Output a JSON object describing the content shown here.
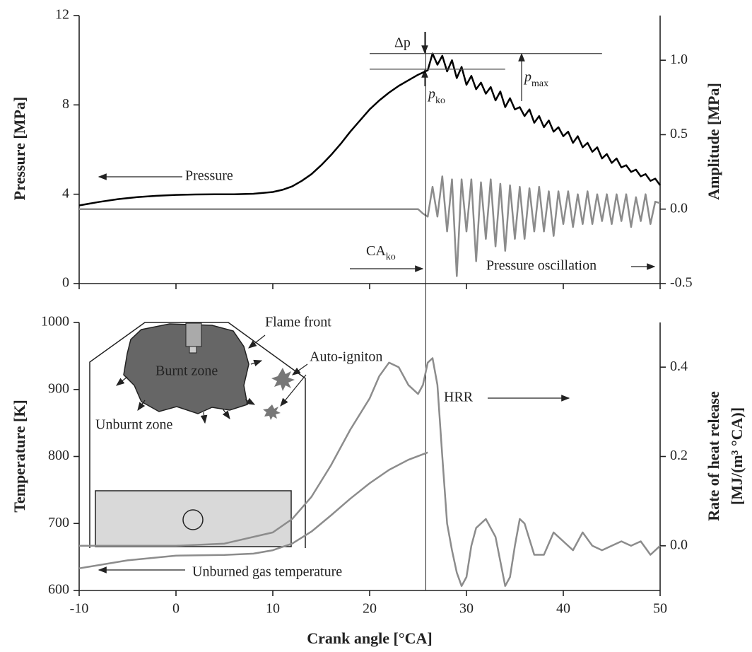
{
  "chart_data": [
    {
      "type": "line",
      "ylabel": "Pressure [MPa]",
      "y2label": "Amplitude [MPa]",
      "ylim": [
        0,
        12
      ],
      "yticks": [
        0,
        4,
        8,
        12
      ],
      "y2lim": [
        -0.5,
        1.3
      ],
      "y2ticks": [
        -0.5,
        {
          "value": 0,
          "label": "0.0"
        },
        0.5,
        {
          "value": 1,
          "label": "1.0"
        }
      ],
      "series": [
        {
          "name": "Pressure",
          "color": "#000000",
          "x": [
            -10,
            -8,
            -6,
            -4,
            -2,
            0,
            2,
            4,
            6,
            8,
            10,
            11,
            12,
            13,
            14,
            15,
            16,
            17,
            18,
            19,
            20,
            21,
            22,
            23,
            24,
            25,
            26,
            26.5,
            27,
            27.5,
            28,
            28.5,
            29,
            29.5,
            30,
            30.5,
            31,
            31.5,
            32,
            32.5,
            33,
            33.5,
            34,
            34.5,
            35,
            35.5,
            36,
            36.5,
            37,
            37.5,
            38,
            38.5,
            39,
            39.5,
            40,
            40.5,
            41,
            41.5,
            42,
            42.5,
            43,
            43.5,
            44,
            44.5,
            45,
            45.5,
            46,
            46.5,
            47,
            47.5,
            48,
            48.5,
            49,
            49.5,
            50
          ],
          "values": [
            3.5,
            3.65,
            3.78,
            3.87,
            3.93,
            3.97,
            3.99,
            4.0,
            4.0,
            4.02,
            4.1,
            4.2,
            4.35,
            4.6,
            4.9,
            5.3,
            5.75,
            6.25,
            6.8,
            7.3,
            7.8,
            8.2,
            8.55,
            8.85,
            9.1,
            9.35,
            9.55,
            10.3,
            9.8,
            10.2,
            9.5,
            10.0,
            9.2,
            9.7,
            8.9,
            9.3,
            8.7,
            9.0,
            8.5,
            8.8,
            8.2,
            8.6,
            7.9,
            8.3,
            7.8,
            7.9,
            7.5,
            7.8,
            7.2,
            7.5,
            7.0,
            7.3,
            6.8,
            7.0,
            6.6,
            6.8,
            6.3,
            6.6,
            6.1,
            6.3,
            5.9,
            6.1,
            5.6,
            5.8,
            5.4,
            5.6,
            5.2,
            5.3,
            5.0,
            5.1,
            4.8,
            4.9,
            4.6,
            4.7,
            4.4
          ]
        },
        {
          "name": "Pressure oscillation",
          "color": "#8c8c8c",
          "axis": "y2",
          "x": [
            -10,
            0,
            10,
            20,
            25,
            25.5,
            26,
            26.5,
            27,
            27.5,
            28,
            28.5,
            29,
            29.5,
            30,
            30.5,
            31,
            31.5,
            32,
            32.5,
            33,
            33.5,
            34,
            34.5,
            35,
            35.5,
            36,
            36.5,
            37,
            37.5,
            38,
            38.5,
            39,
            39.5,
            40,
            40.5,
            41,
            41.5,
            42,
            42.5,
            43,
            43.5,
            44,
            44.5,
            45,
            45.5,
            46,
            46.5,
            47,
            47.5,
            48,
            48.5,
            49,
            49.5,
            50
          ],
          "values": [
            0,
            0,
            0,
            0,
            0,
            -0.03,
            -0.05,
            0.15,
            -0.05,
            0.22,
            -0.15,
            0.2,
            -0.45,
            0.2,
            -0.15,
            0.2,
            -0.35,
            0.18,
            -0.2,
            0.2,
            -0.25,
            0.17,
            -0.28,
            0.16,
            -0.2,
            0.15,
            -0.2,
            0.14,
            -0.15,
            0.15,
            -0.15,
            0.12,
            -0.18,
            0.12,
            -0.1,
            0.12,
            -0.12,
            0.1,
            -0.1,
            0.12,
            -0.1,
            0.1,
            -0.08,
            0.1,
            -0.1,
            0.1,
            -0.08,
            0.1,
            -0.12,
            0.08,
            -0.08,
            0.1,
            -0.1,
            0.05,
            0.04
          ]
        }
      ],
      "vline_x": 25.8,
      "reference_lines": [
        {
          "y": 10.3,
          "x": [
            20,
            44
          ]
        },
        {
          "y": 9.6,
          "x": [
            20,
            34
          ]
        }
      ],
      "annotations": [
        {
          "text": "Δp"
        },
        {
          "text": "p",
          "sub": "ko"
        },
        {
          "text": "p",
          "sub": "max"
        },
        {
          "text": "CA",
          "sub": "ko"
        }
      ]
    },
    {
      "type": "line",
      "xlabel": "Crank angle [°CA]",
      "ylabel": "Temperature [K]",
      "y2label": [
        "Rate of heat release",
        "[MJ/(m³ °CA)]"
      ],
      "xlim": [
        -10,
        50
      ],
      "xticks": [
        -10,
        0,
        10,
        20,
        30,
        40,
        50
      ],
      "ylim": [
        600,
        1000
      ],
      "yticks": [
        600,
        700,
        800,
        900,
        1000
      ],
      "y2lim": [
        -0.1,
        0.5
      ],
      "y2ticks": [
        {
          "value": 0,
          "label": "0.0"
        },
        0.2,
        0.4
      ],
      "series": [
        {
          "name": "Unburned gas temperature",
          "color": "#8c8c8c",
          "x": [
            -10,
            -5,
            0,
            5,
            8,
            10,
            12,
            14,
            16,
            18,
            20,
            22,
            24,
            26
          ],
          "values": [
            633,
            645,
            652,
            653,
            655,
            660,
            670,
            688,
            712,
            737,
            760,
            780,
            795,
            806
          ]
        },
        {
          "name": "HRR",
          "color": "#8c8c8c",
          "axis": "y2",
          "x": [
            -10,
            0,
            5,
            10,
            12,
            14,
            16,
            18,
            20,
            21,
            22,
            23,
            24,
            25,
            25.5,
            26,
            26.5,
            27,
            27.5,
            28,
            28.5,
            29,
            29.5,
            30,
            30.5,
            31,
            32,
            33,
            34,
            34.5,
            35,
            35.5,
            36,
            37,
            38,
            39,
            40,
            41,
            42,
            43,
            44,
            45,
            46,
            47,
            48,
            49,
            50
          ],
          "values": [
            0,
            0,
            0.005,
            0.03,
            0.06,
            0.11,
            0.18,
            0.26,
            0.33,
            0.38,
            0.41,
            0.4,
            0.36,
            0.34,
            0.36,
            0.41,
            0.42,
            0.36,
            0.2,
            0.05,
            -0.01,
            -0.06,
            -0.09,
            -0.07,
            0,
            0.04,
            0.06,
            0.02,
            -0.09,
            -0.07,
            0,
            0.06,
            0.05,
            -0.02,
            -0.02,
            0.03,
            0.01,
            -0.01,
            0.03,
            0,
            -0.01,
            0,
            0.01,
            0,
            0.01,
            -0.02,
            0
          ]
        }
      ],
      "inset_labels": [
        "Flame front",
        "Auto-igniton",
        "Burnt zone",
        "Unburnt zone"
      ]
    }
  ]
}
